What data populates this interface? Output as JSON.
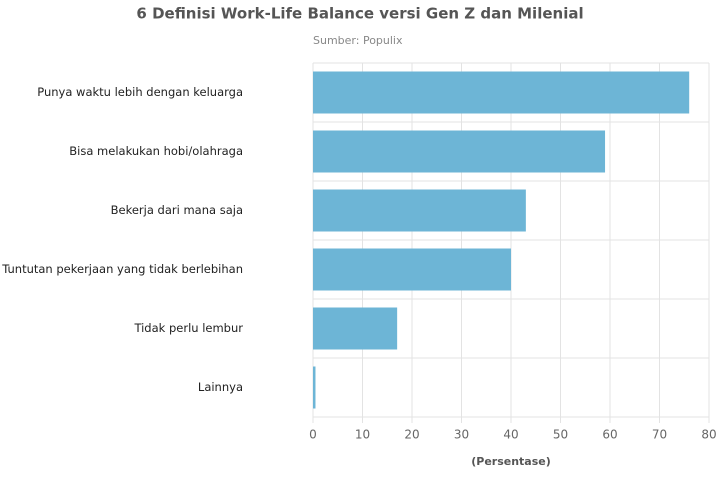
{
  "chart_data": {
    "type": "bar",
    "orientation": "horizontal",
    "title": "6 Definisi Work-Life Balance versi Gen Z dan Milenial",
    "subtitle": "Sumber: Populix",
    "x_label": "(Persentase)",
    "categories": [
      "Punya waktu lebih dengan keluarga",
      "Bisa melakukan hobi/olahraga",
      "Bekerja dari mana saja",
      "Tuntutan pekerjaan yang tidak berlebihan",
      "Tidak perlu lembur",
      "Lainnya"
    ],
    "values": [
      76,
      59,
      43,
      40,
      17,
      0.5
    ],
    "color": "#6db5d6",
    "xlim": [
      0,
      80
    ],
    "xticks": [
      0,
      10,
      20,
      30,
      40,
      50,
      60,
      70,
      80
    ],
    "grid": true
  }
}
